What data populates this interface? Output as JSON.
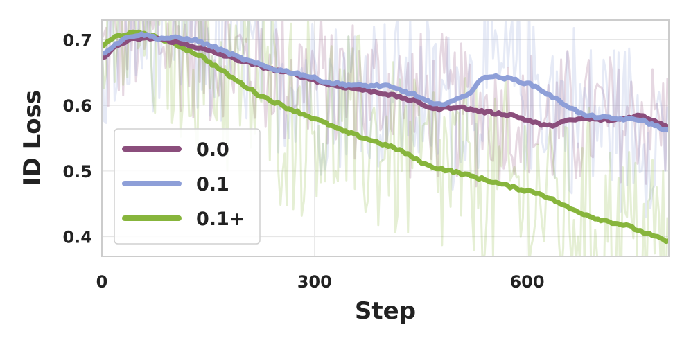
{
  "chart_data": {
    "type": "line",
    "title": "",
    "xlabel": "Step",
    "ylabel": "ID Loss",
    "xlim": [
      0,
      800
    ],
    "ylim": [
      0.37,
      0.73
    ],
    "xticks": [
      0,
      300,
      600
    ],
    "xtick_labels": [
      "0",
      "300",
      "600"
    ],
    "yticks": [
      0.4,
      0.5,
      0.6,
      0.7
    ],
    "ytick_labels": [
      "0.4",
      "0.5",
      "0.6",
      "0.7"
    ],
    "grid": true,
    "legend_position": "lower-left",
    "raw_noise_visible": true,
    "series": [
      {
        "name": "0.0",
        "color": "#8b4e7c",
        "x": [
          0,
          20,
          40,
          60,
          80,
          100,
          130,
          160,
          200,
          240,
          280,
          320,
          360,
          400,
          440,
          470,
          500,
          540,
          580,
          610,
          630,
          650,
          680,
          720,
          760,
          800
        ],
        "y": [
          0.672,
          0.69,
          0.7,
          0.702,
          0.702,
          0.697,
          0.69,
          0.68,
          0.667,
          0.655,
          0.645,
          0.632,
          0.625,
          0.618,
          0.607,
          0.594,
          0.598,
          0.59,
          0.585,
          0.574,
          0.568,
          0.575,
          0.58,
          0.577,
          0.585,
          0.568
        ]
      },
      {
        "name": "0.1",
        "color": "#8e9fd8",
        "x": [
          0,
          20,
          40,
          60,
          80,
          100,
          130,
          160,
          200,
          240,
          280,
          320,
          360,
          400,
          440,
          470,
          500,
          520,
          540,
          560,
          580,
          610,
          640,
          680,
          720,
          760,
          800
        ],
        "y": [
          0.678,
          0.694,
          0.706,
          0.708,
          0.702,
          0.703,
          0.7,
          0.688,
          0.67,
          0.656,
          0.648,
          0.635,
          0.63,
          0.63,
          0.617,
          0.6,
          0.608,
          0.62,
          0.645,
          0.643,
          0.64,
          0.63,
          0.61,
          0.585,
          0.58,
          0.578,
          0.561
        ]
      },
      {
        "name": "0.1+",
        "color": "#87b53c",
        "x": [
          0,
          20,
          40,
          60,
          80,
          100,
          140,
          180,
          220,
          260,
          300,
          340,
          380,
          420,
          460,
          500,
          540,
          580,
          620,
          660,
          700,
          740,
          780,
          800
        ],
        "y": [
          0.69,
          0.705,
          0.71,
          0.71,
          0.702,
          0.695,
          0.675,
          0.645,
          0.617,
          0.597,
          0.58,
          0.561,
          0.547,
          0.532,
          0.508,
          0.498,
          0.487,
          0.475,
          0.465,
          0.443,
          0.427,
          0.417,
          0.4,
          0.392
        ]
      }
    ]
  }
}
